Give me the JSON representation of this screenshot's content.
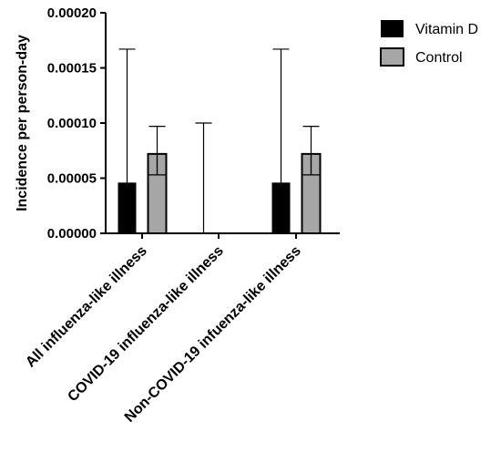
{
  "chart_data": {
    "type": "bar",
    "ylabel": "Incidence per person-day",
    "xlabel": "",
    "ylim": [
      0,
      0.0002
    ],
    "yticks": [
      "0.00000",
      "0.00005",
      "0.00010",
      "0.00015",
      "0.00020"
    ],
    "categories": [
      "All influenza-like illness",
      "COVID-19 influenza-like illness",
      "Non-COVID-19 infuenza-like illness"
    ],
    "series": [
      {
        "name": "Vitamin D",
        "color": "#000000",
        "values": [
          4.6e-05,
          0.0,
          4.6e-05
        ],
        "error_low": [
          0.0,
          0.0,
          0.0
        ],
        "error_high": [
          0.000167,
          0.0001,
          0.000167
        ]
      },
      {
        "name": "Control",
        "color": "#a6a6a6",
        "values": [
          7.2e-05,
          0.0,
          7.2e-05
        ],
        "error_low": [
          5.3e-05,
          0.0,
          5.3e-05
        ],
        "error_high": [
          9.7e-05,
          0.0,
          9.7e-05
        ]
      }
    ],
    "legend": "top-right",
    "grid": false
  }
}
